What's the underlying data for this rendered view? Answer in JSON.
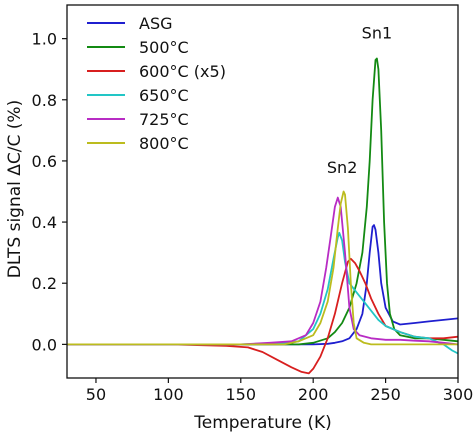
{
  "chart_data": {
    "type": "line",
    "xlabel": "Temperature (K)",
    "ylabel": "DLTS signal ΔC/C (%)",
    "xlim": [
      30,
      300
    ],
    "ylim": [
      -0.11,
      1.11
    ],
    "xticks": [
      "50",
      "100",
      "150",
      "200",
      "250",
      "300"
    ],
    "yticks": [
      "0.0",
      "0.2",
      "0.4",
      "0.6",
      "0.8",
      "1.0"
    ],
    "legend_position": "top-left",
    "annotations": [
      {
        "text": "Sn1",
        "x": 244,
        "y": 1.0
      },
      {
        "text": "Sn2",
        "x": 220,
        "y": 0.56
      }
    ],
    "series": [
      {
        "name": "ASG",
        "color": "#1f1fcf",
        "points": [
          [
            30,
            0.0
          ],
          [
            100,
            0.0
          ],
          [
            150,
            0.0
          ],
          [
            190,
            0.0
          ],
          [
            200,
            0.0
          ],
          [
            210,
            0.002
          ],
          [
            215,
            0.005
          ],
          [
            220,
            0.01
          ],
          [
            225,
            0.02
          ],
          [
            230,
            0.05
          ],
          [
            234,
            0.1
          ],
          [
            237,
            0.2
          ],
          [
            239,
            0.3
          ],
          [
            241,
            0.385
          ],
          [
            242,
            0.39
          ],
          [
            243,
            0.375
          ],
          [
            245,
            0.3
          ],
          [
            247,
            0.2
          ],
          [
            250,
            0.12
          ],
          [
            255,
            0.075
          ],
          [
            260,
            0.065
          ],
          [
            270,
            0.07
          ],
          [
            280,
            0.075
          ],
          [
            290,
            0.08
          ],
          [
            300,
            0.085
          ]
        ]
      },
      {
        "name": "500°C",
        "color": "#138a13",
        "points": [
          [
            30,
            0.0
          ],
          [
            150,
            0.0
          ],
          [
            190,
            0.0
          ],
          [
            200,
            0.005
          ],
          [
            210,
            0.02
          ],
          [
            215,
            0.04
          ],
          [
            220,
            0.07
          ],
          [
            225,
            0.12
          ],
          [
            230,
            0.2
          ],
          [
            234,
            0.3
          ],
          [
            237,
            0.45
          ],
          [
            239,
            0.6
          ],
          [
            241,
            0.8
          ],
          [
            243,
            0.93
          ],
          [
            244,
            0.935
          ],
          [
            245,
            0.9
          ],
          [
            247,
            0.7
          ],
          [
            249,
            0.4
          ],
          [
            251,
            0.2
          ],
          [
            253,
            0.1
          ],
          [
            256,
            0.05
          ],
          [
            260,
            0.03
          ],
          [
            270,
            0.02
          ],
          [
            280,
            0.02
          ],
          [
            290,
            0.015
          ],
          [
            300,
            0.01
          ]
        ]
      },
      {
        "name": "600°C (x5)",
        "color": "#d81f1f",
        "points": [
          [
            30,
            0.0
          ],
          [
            100,
            0.0
          ],
          [
            140,
            -0.005
          ],
          [
            155,
            -0.01
          ],
          [
            165,
            -0.025
          ],
          [
            175,
            -0.05
          ],
          [
            185,
            -0.075
          ],
          [
            192,
            -0.09
          ],
          [
            197,
            -0.095
          ],
          [
            200,
            -0.08
          ],
          [
            205,
            -0.04
          ],
          [
            210,
            0.02
          ],
          [
            215,
            0.1
          ],
          [
            220,
            0.2
          ],
          [
            224,
            0.27
          ],
          [
            226,
            0.28
          ],
          [
            229,
            0.265
          ],
          [
            232,
            0.24
          ],
          [
            236,
            0.2
          ],
          [
            240,
            0.15
          ],
          [
            245,
            0.1
          ],
          [
            250,
            0.06
          ],
          [
            260,
            0.04
          ],
          [
            270,
            0.025
          ],
          [
            280,
            0.02
          ],
          [
            290,
            0.02
          ],
          [
            300,
            0.025
          ]
        ]
      },
      {
        "name": "650°C",
        "color": "#22c6c6",
        "points": [
          [
            30,
            0.0
          ],
          [
            150,
            0.0
          ],
          [
            180,
            0.005
          ],
          [
            190,
            0.01
          ],
          [
            200,
            0.05
          ],
          [
            205,
            0.1
          ],
          [
            210,
            0.18
          ],
          [
            214,
            0.28
          ],
          [
            217,
            0.35
          ],
          [
            218,
            0.365
          ],
          [
            220,
            0.34
          ],
          [
            222,
            0.27
          ],
          [
            225,
            0.2
          ],
          [
            230,
            0.17
          ],
          [
            235,
            0.14
          ],
          [
            240,
            0.11
          ],
          [
            245,
            0.08
          ],
          [
            250,
            0.06
          ],
          [
            260,
            0.04
          ],
          [
            270,
            0.025
          ],
          [
            280,
            0.02
          ],
          [
            290,
            0.0
          ],
          [
            296,
            -0.02
          ],
          [
            300,
            -0.03
          ]
        ]
      },
      {
        "name": "725°C",
        "color": "#b82cc4",
        "points": [
          [
            30,
            0.0
          ],
          [
            150,
            0.0
          ],
          [
            170,
            0.005
          ],
          [
            185,
            0.01
          ],
          [
            195,
            0.03
          ],
          [
            200,
            0.07
          ],
          [
            205,
            0.14
          ],
          [
            209,
            0.25
          ],
          [
            212,
            0.35
          ],
          [
            215,
            0.45
          ],
          [
            217,
            0.48
          ],
          [
            219,
            0.45
          ],
          [
            222,
            0.3
          ],
          [
            225,
            0.12
          ],
          [
            228,
            0.05
          ],
          [
            232,
            0.03
          ],
          [
            240,
            0.02
          ],
          [
            250,
            0.015
          ],
          [
            260,
            0.015
          ],
          [
            270,
            0.012
          ],
          [
            280,
            0.01
          ],
          [
            290,
            0.005
          ],
          [
            300,
            0.0
          ]
        ]
      },
      {
        "name": "800°C",
        "color": "#bcbc1e",
        "points": [
          [
            30,
            0.0
          ],
          [
            150,
            0.0
          ],
          [
            180,
            0.0
          ],
          [
            190,
            0.01
          ],
          [
            200,
            0.03
          ],
          [
            205,
            0.07
          ],
          [
            210,
            0.14
          ],
          [
            214,
            0.25
          ],
          [
            217,
            0.38
          ],
          [
            219,
            0.46
          ],
          [
            221,
            0.5
          ],
          [
            222,
            0.49
          ],
          [
            224,
            0.38
          ],
          [
            226,
            0.2
          ],
          [
            228,
            0.07
          ],
          [
            230,
            0.02
          ],
          [
            235,
            0.005
          ],
          [
            240,
            0.0
          ],
          [
            250,
            0.0
          ],
          [
            260,
            0.0
          ],
          [
            280,
            0.0
          ],
          [
            300,
            0.0
          ]
        ]
      }
    ]
  }
}
